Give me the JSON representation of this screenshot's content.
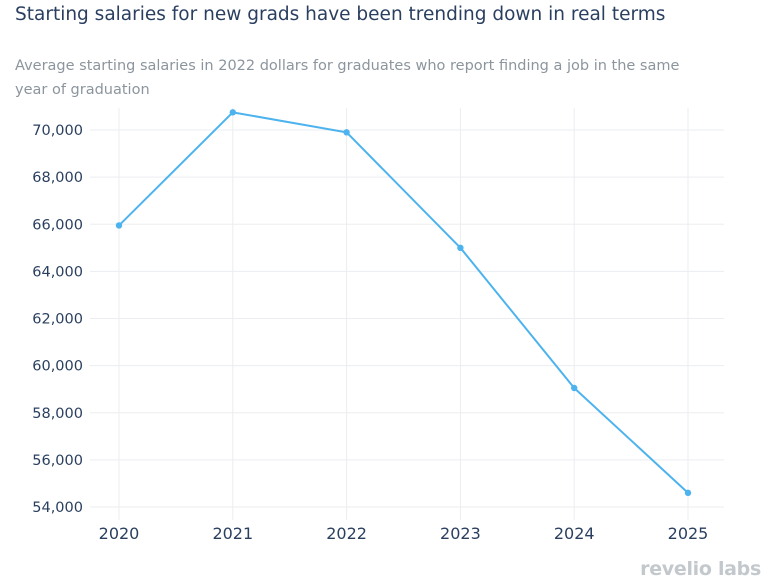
{
  "chart_data": {
    "type": "line",
    "title": "Starting salaries for new grads have been trending down in real terms",
    "subtitle": "Average starting salaries in 2022 dollars for graduates who report finding a job in the same year of graduation",
    "xlabel": "",
    "ylabel": "",
    "x": [
      "2020",
      "2021",
      "2022",
      "2023",
      "2024",
      "2025"
    ],
    "series": [
      {
        "values": [
          65950,
          70750,
          69900,
          65000,
          59050,
          54600
        ]
      }
    ],
    "y_ticks": [
      54000,
      56000,
      58000,
      60000,
      62000,
      64000,
      66000,
      68000,
      70000
    ],
    "y_tick_labels": [
      "54,000",
      "56,000",
      "58,000",
      "60,000",
      "62,000",
      "64,000",
      "66,000",
      "68,000",
      "70,000"
    ],
    "ylim": [
      54000,
      70000
    ],
    "grid": true,
    "legend": "none",
    "colors": {
      "line": "#4db3ee",
      "grid": "#ebedf0",
      "text": "#2a3f5f"
    }
  },
  "branding": {
    "logo_text": "revelio labs"
  }
}
